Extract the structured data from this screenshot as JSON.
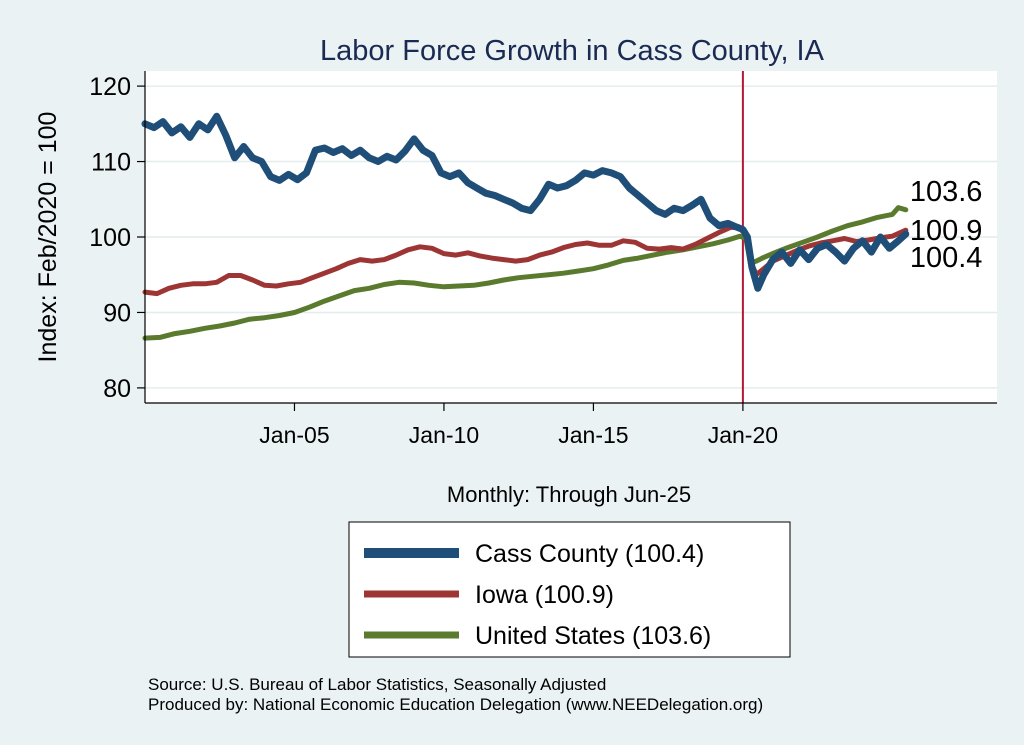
{
  "chart_data": {
    "type": "line",
    "title": "Labor Force Growth in Cass  County, IA",
    "xlabel": "Monthly: Through Jun-25",
    "ylabel": "Index: Feb/2020 = 100",
    "xlim": [
      2000.0,
      2028.5
    ],
    "ylim": [
      78,
      122
    ],
    "y_ticks": [
      80,
      90,
      100,
      110,
      120
    ],
    "x_ticks": [
      {
        "label": "Jan-05",
        "value": 2005.0
      },
      {
        "label": "Jan-10",
        "value": 2010.0
      },
      {
        "label": "Jan-15",
        "value": 2015.0
      },
      {
        "label": "Jan-20",
        "value": 2020.0
      }
    ],
    "reference_line": {
      "x": 2020.0,
      "color": "#b5173a"
    },
    "grid": true,
    "series": [
      {
        "name": "Cass  County",
        "legend_label": "Cass  County (100.4)",
        "end_label": "100.4",
        "color": "#1f4e79",
        "x": [
          2000.0,
          2000.3,
          2000.6,
          2000.9,
          2001.2,
          2001.5,
          2001.8,
          2002.1,
          2002.4,
          2002.7,
          2003.0,
          2003.3,
          2003.6,
          2003.9,
          2004.2,
          2004.5,
          2004.8,
          2005.1,
          2005.4,
          2005.7,
          2006.0,
          2006.3,
          2006.6,
          2006.9,
          2007.2,
          2007.5,
          2007.8,
          2008.1,
          2008.4,
          2008.7,
          2009.0,
          2009.3,
          2009.6,
          2009.9,
          2010.2,
          2010.5,
          2010.8,
          2011.1,
          2011.4,
          2011.7,
          2012.0,
          2012.3,
          2012.6,
          2012.9,
          2013.2,
          2013.5,
          2013.8,
          2014.1,
          2014.4,
          2014.7,
          2015.0,
          2015.3,
          2015.6,
          2015.9,
          2016.2,
          2016.5,
          2016.8,
          2017.1,
          2017.4,
          2017.7,
          2018.0,
          2018.3,
          2018.6,
          2018.9,
          2019.2,
          2019.5,
          2019.8,
          2020.0,
          2020.15,
          2020.3,
          2020.5,
          2020.7,
          2021.0,
          2021.3,
          2021.6,
          2021.9,
          2022.2,
          2022.5,
          2022.8,
          2023.1,
          2023.4,
          2023.7,
          2024.0,
          2024.3,
          2024.6,
          2024.9,
          2025.2,
          2025.45
        ],
        "y": [
          115.0,
          114.5,
          115.3,
          113.8,
          114.6,
          113.2,
          115.0,
          114.2,
          116.0,
          113.5,
          110.5,
          112.0,
          110.5,
          110.0,
          108.0,
          107.5,
          108.3,
          107.6,
          108.5,
          111.5,
          111.8,
          111.2,
          111.7,
          110.8,
          111.5,
          110.5,
          110.0,
          110.7,
          110.2,
          111.4,
          113.0,
          111.5,
          110.8,
          108.5,
          108.0,
          108.5,
          107.2,
          106.5,
          105.8,
          105.5,
          105.0,
          104.5,
          103.8,
          103.5,
          105.0,
          107.0,
          106.5,
          106.8,
          107.5,
          108.5,
          108.2,
          108.8,
          108.5,
          108.0,
          106.5,
          105.5,
          104.5,
          103.5,
          103.0,
          103.8,
          103.5,
          104.2,
          105.0,
          102.5,
          101.5,
          101.8,
          101.3,
          101.0,
          100.0,
          96.0,
          93.2,
          95.0,
          97.0,
          98.0,
          96.5,
          98.3,
          97.0,
          98.5,
          99.0,
          98.0,
          96.8,
          98.5,
          99.5,
          98.0,
          100.0,
          98.5,
          99.5,
          100.4
        ]
      },
      {
        "name": "Iowa",
        "legend_label": "Iowa (100.9)",
        "end_label": "100.9",
        "color": "#9e3535",
        "x": [
          2000.0,
          2000.4,
          2000.8,
          2001.2,
          2001.6,
          2002.0,
          2002.4,
          2002.8,
          2003.2,
          2003.6,
          2004.0,
          2004.4,
          2004.8,
          2005.2,
          2005.6,
          2006.0,
          2006.4,
          2006.8,
          2007.2,
          2007.6,
          2008.0,
          2008.4,
          2008.8,
          2009.2,
          2009.6,
          2010.0,
          2010.4,
          2010.8,
          2011.2,
          2011.6,
          2012.0,
          2012.4,
          2012.8,
          2013.2,
          2013.6,
          2014.0,
          2014.4,
          2014.8,
          2015.2,
          2015.6,
          2016.0,
          2016.4,
          2016.8,
          2017.2,
          2017.6,
          2018.0,
          2018.4,
          2018.8,
          2019.2,
          2019.6,
          2019.9,
          2020.1,
          2020.25,
          2020.45,
          2020.7,
          2021.0,
          2021.4,
          2021.8,
          2022.2,
          2022.6,
          2023.0,
          2023.4,
          2023.8,
          2024.2,
          2024.6,
          2025.0,
          2025.45
        ],
        "y": [
          92.7,
          92.5,
          93.2,
          93.6,
          93.8,
          93.8,
          94.0,
          94.9,
          94.9,
          94.3,
          93.6,
          93.5,
          93.8,
          94.0,
          94.6,
          95.2,
          95.8,
          96.5,
          97.0,
          96.8,
          97.0,
          97.6,
          98.3,
          98.7,
          98.5,
          97.8,
          97.6,
          97.9,
          97.5,
          97.2,
          97.0,
          96.8,
          97.0,
          97.6,
          98.0,
          98.6,
          99.0,
          99.2,
          98.9,
          98.9,
          99.5,
          99.3,
          98.5,
          98.4,
          98.6,
          98.4,
          99.0,
          99.8,
          100.6,
          101.3,
          101.2,
          100.2,
          96.8,
          95.0,
          95.8,
          96.8,
          97.5,
          98.2,
          98.8,
          99.2,
          99.5,
          99.8,
          99.4,
          99.6,
          99.9,
          100.1,
          100.9
        ]
      },
      {
        "name": "United States",
        "legend_label": "United States (103.6)",
        "end_label": "103.6",
        "color": "#5a7a2e",
        "x": [
          2000.0,
          2000.5,
          2001.0,
          2001.5,
          2002.0,
          2002.5,
          2003.0,
          2003.5,
          2004.0,
          2004.5,
          2005.0,
          2005.5,
          2006.0,
          2006.5,
          2007.0,
          2007.5,
          2008.0,
          2008.5,
          2009.0,
          2009.5,
          2010.0,
          2010.5,
          2011.0,
          2011.5,
          2012.0,
          2012.5,
          2013.0,
          2013.5,
          2014.0,
          2014.5,
          2015.0,
          2015.5,
          2016.0,
          2016.5,
          2017.0,
          2017.5,
          2018.0,
          2018.5,
          2019.0,
          2019.5,
          2019.9,
          2020.1,
          2020.25,
          2020.45,
          2020.7,
          2021.0,
          2021.5,
          2022.0,
          2022.5,
          2023.0,
          2023.5,
          2024.0,
          2024.5,
          2025.0,
          2025.2,
          2025.45
        ],
        "y": [
          86.6,
          86.7,
          87.2,
          87.5,
          87.9,
          88.2,
          88.6,
          89.1,
          89.3,
          89.6,
          90.0,
          90.7,
          91.5,
          92.2,
          92.9,
          93.2,
          93.7,
          94.0,
          93.9,
          93.6,
          93.4,
          93.5,
          93.6,
          93.9,
          94.3,
          94.6,
          94.8,
          95.0,
          95.2,
          95.5,
          95.8,
          96.3,
          96.9,
          97.2,
          97.6,
          98.0,
          98.3,
          98.7,
          99.1,
          99.6,
          100.1,
          99.8,
          96.5,
          96.8,
          97.3,
          97.8,
          98.6,
          99.3,
          100.0,
          100.8,
          101.5,
          102.0,
          102.6,
          103.0,
          103.9,
          103.6
        ]
      }
    ]
  },
  "source_line_1": "Source: U.S. Bureau of Labor Statistics, Seasonally Adjusted",
  "source_line_2": "Produced by: National Economic Education Delegation (www.NEEDelegation.org)"
}
